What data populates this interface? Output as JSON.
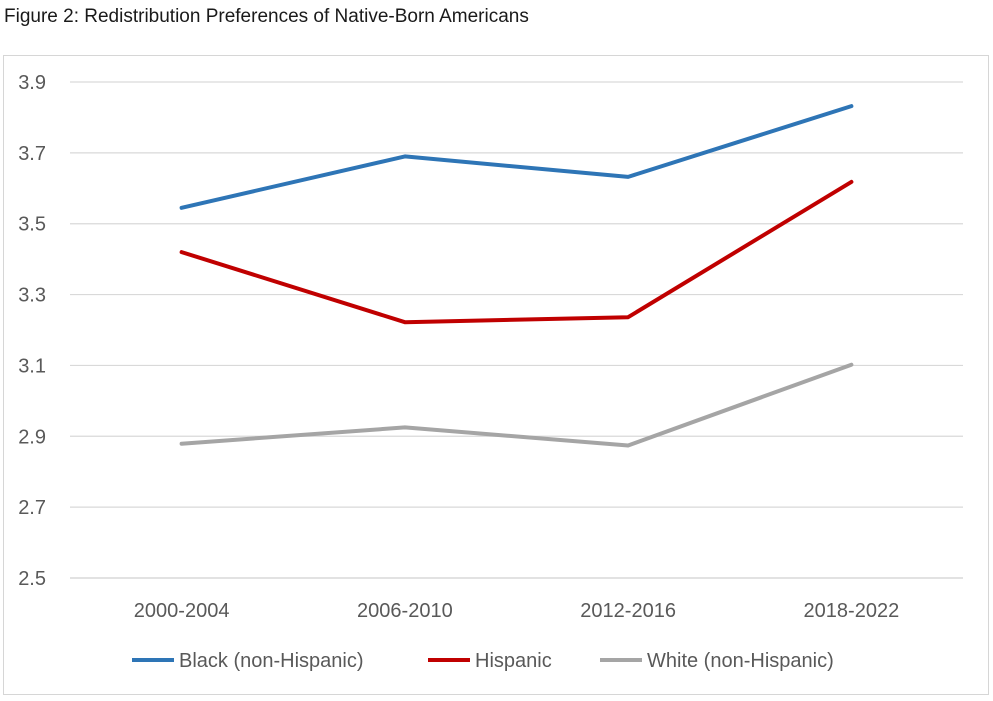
{
  "figure_title": "Figure 2: Redistribution Preferences of Native-Born Americans",
  "chart_data": {
    "type": "line",
    "categories": [
      "2000-2004",
      "2006-2010",
      "2012-2016",
      "2018-2022"
    ],
    "series": [
      {
        "name": "Black (non-Hispanic)",
        "color": "#2e75b6",
        "values": [
          3.545,
          3.69,
          3.632,
          3.832
        ]
      },
      {
        "name": "Hispanic",
        "color": "#c00000",
        "values": [
          3.42,
          3.222,
          3.236,
          3.618
        ]
      },
      {
        "name": "White (non-Hispanic)",
        "color": "#a5a5a5",
        "values": [
          2.879,
          2.925,
          2.874,
          3.102
        ]
      }
    ],
    "y_ticks": [
      "2.5",
      "2.7",
      "2.9",
      "3.1",
      "3.3",
      "3.5",
      "3.7",
      "3.9"
    ],
    "ylim": [
      2.5,
      3.9
    ],
    "grid": true,
    "legend_position": "bottom"
  }
}
